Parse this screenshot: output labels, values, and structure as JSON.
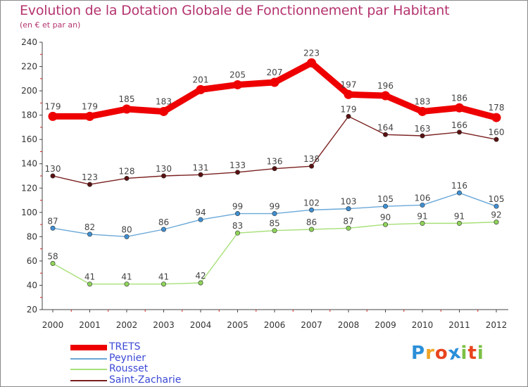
{
  "title": "Evolution de la Dotation Globale de Fonctionnement par Habitant",
  "subtitle": "(en € et par an)",
  "logo": {
    "text": "Proxiti",
    "colors": [
      "#2b8fd8",
      "#f0a324",
      "#e8451e",
      "#2b8fd8",
      "#7bc043",
      "#e8451e",
      "#7bc043"
    ]
  },
  "chart_data": {
    "type": "line",
    "title": "Evolution de la Dotation Globale de Fonctionnement par Habitant",
    "subtitle": "(en € et par an)",
    "xlabel": "",
    "ylabel": "",
    "ylim": [
      20,
      240
    ],
    "yticks": [
      20,
      40,
      60,
      80,
      100,
      120,
      140,
      160,
      180,
      200,
      220,
      240
    ],
    "grid": false,
    "legend_position": "bottom-left",
    "categories": [
      "2000",
      "2001",
      "2002",
      "2003",
      "2004",
      "2005",
      "2006",
      "2007",
      "2008",
      "2009",
      "2010",
      "2011",
      "2012"
    ],
    "series": [
      {
        "name": "Saint-Zacharie",
        "color": "#7a1f1f",
        "marker": "#5a1010",
        "weight": "thin",
        "values": [
          130,
          123,
          128,
          130,
          131,
          133,
          136,
          138,
          179,
          164,
          163,
          166,
          160
        ]
      },
      {
        "name": "Peynier",
        "color": "#6aa8d8",
        "marker": "#3f8fd2",
        "weight": "thin",
        "values": [
          87,
          82,
          80,
          86,
          94,
          99,
          99,
          102,
          103,
          105,
          106,
          116,
          105
        ]
      },
      {
        "name": "Rousset",
        "color": "#a8e07a",
        "marker": "#8fd45a",
        "weight": "thin",
        "values": [
          58,
          41,
          41,
          41,
          42,
          83,
          85,
          86,
          87,
          90,
          91,
          91,
          92
        ]
      },
      {
        "name": "TRETS",
        "color": "#ee0000",
        "marker": "#ee0000",
        "weight": "thick",
        "values": [
          179,
          179,
          185,
          183,
          201,
          205,
          207,
          223,
          197,
          196,
          183,
          186,
          178
        ]
      }
    ],
    "legend": [
      "TRETS",
      "Peynier",
      "Rousset",
      "Saint-Zacharie"
    ]
  }
}
